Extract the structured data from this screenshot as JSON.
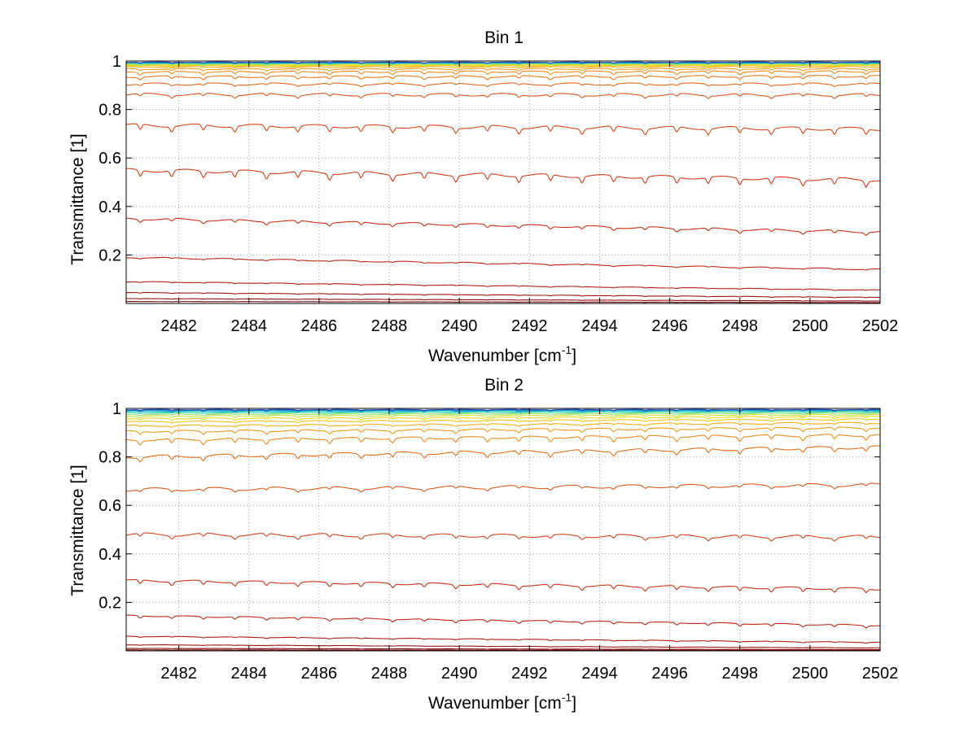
{
  "chart_data": [
    {
      "type": "line",
      "title": "Bin 1",
      "xlabel_main": "Wavenumber [cm",
      "xlabel_sup": "-1",
      "xlabel_end": "]",
      "ylabel": "Transmittance [1]",
      "xlim": [
        2480.5,
        2502
      ],
      "ylim": [
        0,
        1
      ],
      "xticks": [
        2482,
        2484,
        2486,
        2488,
        2490,
        2492,
        2494,
        2496,
        2498,
        2500,
        2502
      ],
      "yticks": [
        0.2,
        0.4,
        0.6,
        0.8,
        1
      ],
      "grid": true,
      "series": [
        {
          "start": 0.995,
          "end": 0.995,
          "depth": 0.003,
          "color": "#1f3fb0"
        },
        {
          "start": 0.994,
          "end": 0.994,
          "depth": 0.003,
          "color": "#1e78c8"
        },
        {
          "start": 0.993,
          "end": 0.993,
          "depth": 0.003,
          "color": "#17a8d6"
        },
        {
          "start": 0.992,
          "end": 0.992,
          "depth": 0.004,
          "color": "#1cc8c8"
        },
        {
          "start": 0.99,
          "end": 0.991,
          "depth": 0.004,
          "color": "#4cd8a0"
        },
        {
          "start": 0.988,
          "end": 0.989,
          "depth": 0.004,
          "color": "#8ee06a"
        },
        {
          "start": 0.986,
          "end": 0.987,
          "depth": 0.005,
          "color": "#c8e040"
        },
        {
          "start": 0.983,
          "end": 0.984,
          "depth": 0.005,
          "color": "#ecd81e"
        },
        {
          "start": 0.98,
          "end": 0.981,
          "depth": 0.005,
          "color": "#f5c518"
        },
        {
          "start": 0.975,
          "end": 0.976,
          "depth": 0.006,
          "color": "#f5ae18"
        },
        {
          "start": 0.967,
          "end": 0.968,
          "depth": 0.007,
          "color": "#f0981c"
        },
        {
          "start": 0.955,
          "end": 0.957,
          "depth": 0.009,
          "color": "#ec8a1e"
        },
        {
          "start": 0.935,
          "end": 0.937,
          "depth": 0.012,
          "color": "#e87a1e"
        },
        {
          "start": 0.905,
          "end": 0.905,
          "depth": 0.015,
          "color": "#e46a1c"
        },
        {
          "start": 0.862,
          "end": 0.86,
          "depth": 0.018,
          "color": "#e0561a"
        },
        {
          "start": 0.735,
          "end": 0.72,
          "depth": 0.022,
          "color": "#d84818"
        },
        {
          "start": 0.55,
          "end": 0.51,
          "depth": 0.022,
          "color": "#d23c16"
        },
        {
          "start": 0.35,
          "end": 0.295,
          "depth": 0.015,
          "color": "#c83014"
        },
        {
          "start": 0.19,
          "end": 0.14,
          "depth": 0.008,
          "color": "#bc2612"
        },
        {
          "start": 0.09,
          "end": 0.055,
          "depth": 0.004,
          "color": "#b01c10"
        },
        {
          "start": 0.045,
          "end": 0.025,
          "depth": 0.002,
          "color": "#a0140e"
        },
        {
          "start": 0.02,
          "end": 0.01,
          "depth": 0.001,
          "color": "#900c0c"
        },
        {
          "start": 0.008,
          "end": 0.004,
          "depth": 0.001,
          "color": "#7a0808"
        }
      ]
    },
    {
      "type": "line",
      "title": "Bin 2",
      "xlabel_main": "Wavenumber [cm",
      "xlabel_sup": "-1",
      "xlabel_end": "]",
      "ylabel": "Transmittance [1]",
      "xlim": [
        2480.5,
        2502
      ],
      "ylim": [
        0,
        1
      ],
      "xticks": [
        2482,
        2484,
        2486,
        2488,
        2490,
        2492,
        2494,
        2496,
        2498,
        2500,
        2502
      ],
      "yticks": [
        0.2,
        0.4,
        0.6,
        0.8,
        1
      ],
      "grid": true,
      "series": [
        {
          "start": 0.995,
          "end": 0.995,
          "depth": 0.003,
          "color": "#1f3fb0"
        },
        {
          "start": 0.993,
          "end": 0.994,
          "depth": 0.003,
          "color": "#1e78c8"
        },
        {
          "start": 0.99,
          "end": 0.992,
          "depth": 0.004,
          "color": "#17a8d6"
        },
        {
          "start": 0.986,
          "end": 0.989,
          "depth": 0.004,
          "color": "#1cc8c8"
        },
        {
          "start": 0.981,
          "end": 0.985,
          "depth": 0.005,
          "color": "#4cd8a0"
        },
        {
          "start": 0.975,
          "end": 0.98,
          "depth": 0.005,
          "color": "#8ee06a"
        },
        {
          "start": 0.968,
          "end": 0.974,
          "depth": 0.006,
          "color": "#c8e040"
        },
        {
          "start": 0.958,
          "end": 0.966,
          "depth": 0.007,
          "color": "#ecd81e"
        },
        {
          "start": 0.945,
          "end": 0.955,
          "depth": 0.008,
          "color": "#f5c518"
        },
        {
          "start": 0.928,
          "end": 0.94,
          "depth": 0.01,
          "color": "#f5ae18"
        },
        {
          "start": 0.905,
          "end": 0.92,
          "depth": 0.012,
          "color": "#f0981c"
        },
        {
          "start": 0.87,
          "end": 0.89,
          "depth": 0.015,
          "color": "#ec8a1e"
        },
        {
          "start": 0.8,
          "end": 0.84,
          "depth": 0.02,
          "color": "#e4701c"
        },
        {
          "start": 0.665,
          "end": 0.685,
          "depth": 0.022,
          "color": "#dc5a1a"
        },
        {
          "start": 0.48,
          "end": 0.47,
          "depth": 0.022,
          "color": "#d44418"
        },
        {
          "start": 0.29,
          "end": 0.255,
          "depth": 0.015,
          "color": "#c83414"
        },
        {
          "start": 0.145,
          "end": 0.105,
          "depth": 0.008,
          "color": "#bc2612"
        },
        {
          "start": 0.06,
          "end": 0.035,
          "depth": 0.004,
          "color": "#b01c10"
        },
        {
          "start": 0.025,
          "end": 0.012,
          "depth": 0.002,
          "color": "#9c140e"
        },
        {
          "start": 0.01,
          "end": 0.005,
          "depth": 0.001,
          "color": "#860a0a"
        },
        {
          "start": 0.004,
          "end": 0.002,
          "depth": 0.001,
          "color": "#740606"
        }
      ]
    }
  ]
}
